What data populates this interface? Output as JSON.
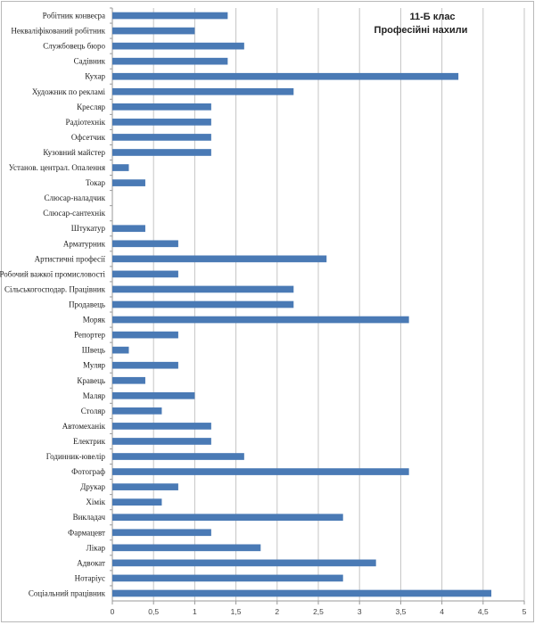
{
  "chart_data": {
    "type": "bar",
    "orientation": "horizontal",
    "title": "11-Б клас",
    "subtitle": "Професійні нахили",
    "xlabel": "",
    "ylabel": "",
    "xlim": [
      0,
      5
    ],
    "x_ticks": [
      "0",
      "0,5",
      "1",
      "1,5",
      "2",
      "2,5",
      "3",
      "3,5",
      "4",
      "4,5",
      "5"
    ],
    "x_tick_values": [
      0,
      0.5,
      1,
      1.5,
      2,
      2.5,
      3,
      3.5,
      4,
      4.5,
      5
    ],
    "grid": "vertical",
    "legend": "none",
    "bar_color": "#4a7ab5",
    "categories": [
      "Робітник конвеєра",
      "Некваліфікований робітник",
      "Службовець бюро",
      "Садівник",
      "Кухар",
      "Художник по рекламі",
      "Кресляр",
      "Радіотехнік",
      "Офсетчик",
      "Кузовний майстер",
      "Установ. централ. Опалення",
      "Токар",
      "Слюсар-наладчик",
      "Слюсар-сантехнік",
      "Штукатур",
      "Арматурник",
      "Артистичні професії",
      "Робочий важкої промисловості",
      "Сільськогосподар. Працівник",
      "Продавець",
      "Моряк",
      "Репортер",
      "Швець",
      "Муляр",
      "Кравець",
      "Маляр",
      "Столяр",
      "Автомеханік",
      "Електрик",
      "Годинник-ювелір",
      "Фотограф",
      "Друкар",
      "Хімік",
      "Викладач",
      "Фармацевт",
      "Лікар",
      "Адвокат",
      "Нотаріус",
      "Соціальний працівник"
    ],
    "values": [
      1.4,
      1.0,
      1.6,
      1.4,
      4.2,
      2.2,
      1.2,
      1.2,
      1.2,
      1.2,
      0.2,
      0.4,
      0,
      0,
      0.4,
      0.8,
      2.6,
      0.8,
      2.2,
      2.2,
      3.6,
      0.8,
      0.2,
      0.8,
      0.4,
      1.0,
      0.6,
      1.2,
      1.2,
      1.6,
      3.6,
      0.8,
      0.6,
      2.8,
      1.2,
      1.8,
      3.2,
      2.8,
      4.6
    ]
  }
}
